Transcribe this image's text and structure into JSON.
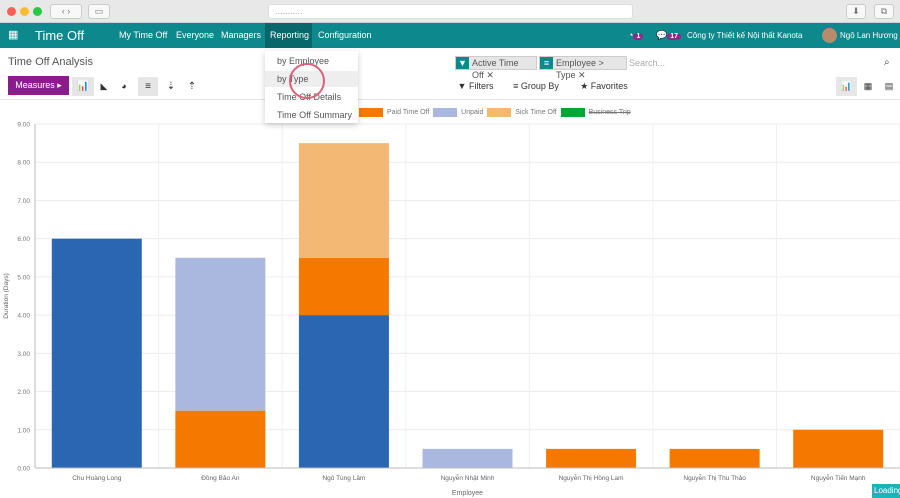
{
  "browser": {
    "url_placeholder": "..........."
  },
  "nav": {
    "app_title": "Time Off",
    "items": [
      "My Time Off",
      "Everyone",
      "Managers",
      "Reporting",
      "Configuration"
    ],
    "activity_count": "1",
    "message_count": "17",
    "company": "Công ty Thiết kế Nội thất Kanota",
    "user": "Ngô Lan Hương",
    "accent": "#0d888c"
  },
  "page": {
    "title": "Time Off Analysis",
    "measures_label": "Measures ▸",
    "search_placeholder": "Search...",
    "facets": [
      "Active Time Off",
      "Employee > Type"
    ],
    "filters_label": "Filters",
    "groupby_label": "Group By",
    "favorites_label": "Favorites",
    "loading": "Loading"
  },
  "reporting_menu": {
    "items": [
      "by Employee",
      "by Type",
      "Time Off Details",
      "Time Off Summary"
    ]
  },
  "chart_data": {
    "type": "bar",
    "stacked": true,
    "xlabel": "Employee",
    "ylabel": "Duration (Days)",
    "ylim": [
      0,
      9
    ],
    "yticks": [
      "0.00",
      "1.00",
      "2.00",
      "3.00",
      "4.00",
      "5.00",
      "6.00",
      "7.00",
      "8.00",
      "9.00"
    ],
    "grid": true,
    "legend": "top",
    "categories": [
      "Chu Hoàng Long",
      "Đồng Bảo An",
      "Ngô Tùng Lâm",
      "Nguyễn Nhật Minh",
      "Nguyễn Thị Hồng Lam",
      "Nguyễn Thị Thu Thảo",
      "Nguyễn Tiến Mạnh"
    ],
    "series": [
      {
        "color": "#2a66b1",
        "values": [
          6,
          0,
          4,
          0,
          0,
          0,
          0
        ]
      },
      {
        "name": "Paid Time Off",
        "color": "#f57900",
        "values": [
          0,
          1.5,
          1.5,
          0,
          0.5,
          0.5,
          1
        ]
      },
      {
        "name": "Unpaid",
        "color": "#aab8e0",
        "values": [
          0,
          4,
          0,
          0.5,
          0,
          0,
          0
        ]
      },
      {
        "name": "Sick Time Off",
        "color": "#f3b874",
        "values": [
          0,
          0,
          3,
          0,
          0,
          0,
          0
        ]
      },
      {
        "name": "Business Trip",
        "color": "#00a832",
        "hidden": true,
        "values": [
          0,
          0,
          0,
          0,
          0,
          0,
          0
        ]
      }
    ]
  }
}
